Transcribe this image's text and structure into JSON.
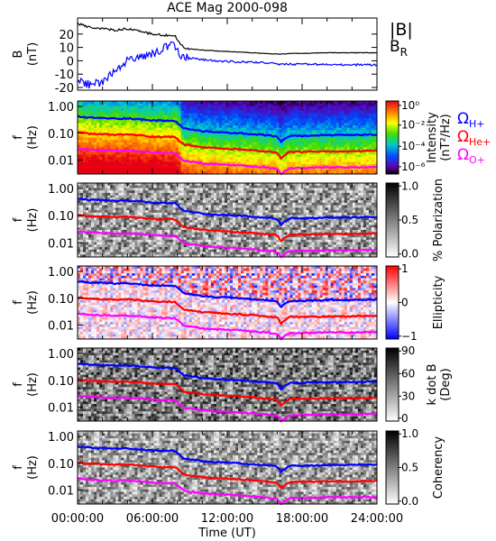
{
  "title": "ACE Mag 2000-098",
  "x_axis": {
    "label": "Time (UT)",
    "ticks": [
      "00:00:00",
      "06:00:00",
      "12:00:00",
      "18:00:00",
      "24:00:00"
    ],
    "range_hours": [
      0,
      24
    ]
  },
  "colors": {
    "total_field": "#000000",
    "radial_field": "#0000ff",
    "omega_h": "#0000ff",
    "omega_he": "#ff0000",
    "omega_o": "#ff00ff"
  },
  "legends": {
    "total_field": "|B|",
    "radial_field": "B",
    "radial_field_sub": "R",
    "omega_symbol": "Ω",
    "omega_h_sub": "H+",
    "omega_he_sub": "He+",
    "omega_o_sub": "O+"
  },
  "chart_data": [
    {
      "type": "line",
      "panel": "magnetic-field",
      "ylabel": "B",
      "yunits": "(nT)",
      "ylim": [
        -22,
        32
      ],
      "y_ticks": [
        "20",
        "10",
        "0",
        "-10",
        "-20"
      ],
      "y_tick_values": [
        20,
        10,
        0,
        -10,
        -20
      ],
      "x_hours": [
        0,
        1,
        2,
        3,
        4,
        5,
        6,
        7,
        7.8,
        8.2,
        8.5,
        9,
        10,
        11,
        12,
        13,
        14,
        15,
        16,
        16.3,
        17,
        18,
        20,
        22,
        24
      ],
      "series": [
        {
          "name": "|B|",
          "values": [
            28,
            25,
            24,
            23,
            24,
            22,
            20,
            19,
            19,
            13,
            10,
            9,
            8,
            7.5,
            7,
            6.5,
            6,
            5.5,
            5,
            5,
            5.5,
            5.5,
            6,
            6,
            6
          ]
        },
        {
          "name": "BR",
          "values": [
            -15,
            -18,
            -16,
            -8,
            0,
            3,
            5,
            10,
            12,
            5,
            3,
            2,
            1,
            0,
            -0.5,
            -1,
            -1,
            -1.5,
            -2,
            -3,
            -2.5,
            -2.5,
            -3,
            -3,
            -3
          ]
        }
      ]
    },
    {
      "type": "heatmap",
      "panel": "intensity",
      "ylabel": "f",
      "yunits": "(Hz)",
      "colorbar_label": "Intensity",
      "colorbar_units": "(nT²/Hz)",
      "colorbar_ticks": [
        "10⁰",
        "10⁻²",
        "10⁻⁴",
        "10⁻⁶"
      ]
    },
    {
      "type": "heatmap",
      "panel": "polarization",
      "ylabel": "f",
      "yunits": "(Hz)",
      "colorbar_label": "% Polarization",
      "colorbar_ticks": [
        "1.0",
        "0.5",
        "0.0"
      ]
    },
    {
      "type": "heatmap",
      "panel": "ellipticity",
      "ylabel": "f",
      "yunits": "(Hz)",
      "colorbar_label": "Ellipticity",
      "colorbar_ticks": [
        "1",
        "0",
        "−1"
      ]
    },
    {
      "type": "heatmap",
      "panel": "k-dot-b",
      "ylabel": "f",
      "yunits": "(Hz)",
      "colorbar_label": "k dot B",
      "colorbar_units": "(Deg)",
      "colorbar_ticks": [
        "90",
        "60",
        "30",
        "0"
      ]
    },
    {
      "type": "heatmap",
      "panel": "coherency",
      "ylabel": "f",
      "yunits": "(Hz)",
      "colorbar_label": "Coherency",
      "colorbar_ticks": [
        "1.0",
        "0.5",
        "0.0"
      ]
    }
  ],
  "frequency_axis": {
    "ticks": [
      "1.00",
      "0.10",
      "0.01"
    ],
    "tick_values": [
      1,
      0.1,
      0.01
    ],
    "range": [
      0.003,
      1.6
    ],
    "scale": "log"
  },
  "gyrofrequency_lines": {
    "x_hours": [
      0,
      1,
      2,
      3,
      4,
      5,
      6,
      7,
      7.8,
      8.2,
      8.5,
      9,
      10,
      11,
      12,
      13,
      14,
      15,
      16,
      16.3,
      17,
      18,
      20,
      22,
      24
    ],
    "omega_h_hz": [
      0.42,
      0.38,
      0.37,
      0.35,
      0.36,
      0.33,
      0.3,
      0.29,
      0.29,
      0.2,
      0.15,
      0.14,
      0.12,
      0.11,
      0.105,
      0.1,
      0.09,
      0.085,
      0.075,
      0.045,
      0.08,
      0.08,
      0.085,
      0.085,
      0.09
    ],
    "omega_he_hz": [
      0.105,
      0.095,
      0.092,
      0.088,
      0.09,
      0.083,
      0.075,
      0.073,
      0.073,
      0.05,
      0.038,
      0.035,
      0.03,
      0.028,
      0.026,
      0.025,
      0.023,
      0.021,
      0.019,
      0.011,
      0.02,
      0.02,
      0.021,
      0.021,
      0.022
    ],
    "omega_o_hz": [
      0.026,
      0.024,
      0.023,
      0.022,
      0.0225,
      0.021,
      0.019,
      0.018,
      0.018,
      0.0125,
      0.0095,
      0.0088,
      0.0075,
      0.007,
      0.0066,
      0.0063,
      0.0057,
      0.0053,
      0.0047,
      0.0028,
      0.005,
      0.005,
      0.0053,
      0.0053,
      0.0055
    ]
  }
}
